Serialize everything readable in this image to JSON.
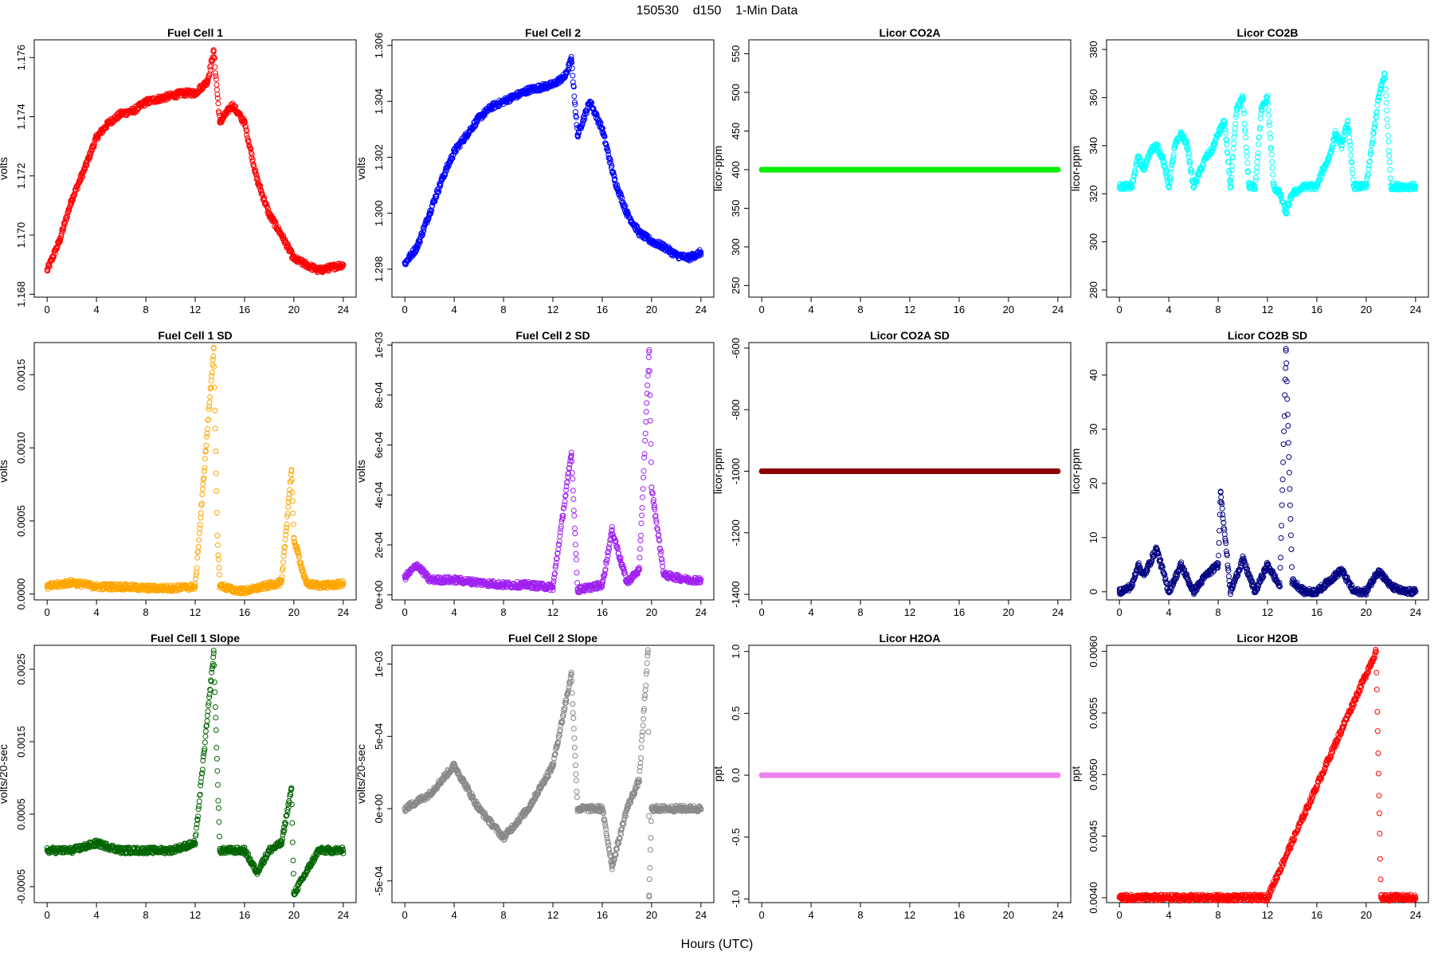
{
  "figure": {
    "title": "150530    d150    1-Min Data",
    "xlabel": "Hours (UTC)"
  },
  "chart_data": [
    {
      "type": "scatter",
      "title": "Fuel Cell 1",
      "ylabel": "volts",
      "color": "#ff0000",
      "xlim": [
        0,
        24
      ],
      "ylim": [
        1.1679,
        1.1766
      ],
      "xticks": [
        "0",
        "4",
        "8",
        "12",
        "16",
        "20",
        "24"
      ],
      "yticks": [
        "1.168",
        "1.170",
        "1.172",
        "1.174",
        "1.176"
      ],
      "x": [
        0,
        1,
        2,
        3,
        4,
        5,
        6,
        7,
        8,
        9,
        10,
        11,
        12,
        13,
        13.5,
        14,
        15,
        16,
        17,
        18,
        19,
        20,
        21,
        22,
        23,
        24
      ],
      "y": [
        1.1688,
        1.1698,
        1.1712,
        1.1722,
        1.1733,
        1.1738,
        1.1741,
        1.1742,
        1.1745,
        1.1746,
        1.1747,
        1.1748,
        1.1748,
        1.1752,
        1.1762,
        1.1738,
        1.1744,
        1.1738,
        1.1719,
        1.1707,
        1.17,
        1.1692,
        1.169,
        1.1688,
        1.1689,
        1.169
      ]
    },
    {
      "type": "scatter",
      "title": "Fuel Cell 2",
      "ylabel": "volts",
      "color": "#0000ff",
      "xlim": [
        0,
        24
      ],
      "ylim": [
        1.297,
        1.3062
      ],
      "xticks": [
        "0",
        "4",
        "8",
        "12",
        "16",
        "20",
        "24"
      ],
      "yticks": [
        "1.298",
        "1.300",
        "1.302",
        "1.304",
        "1.306"
      ],
      "x": [
        0,
        1,
        2,
        3,
        4,
        5,
        6,
        7,
        8,
        9,
        10,
        11,
        12,
        13,
        13.5,
        14,
        15,
        16,
        17,
        18,
        19,
        20,
        21,
        22,
        23,
        24
      ],
      "y": [
        1.2982,
        1.2988,
        1.3,
        1.3012,
        1.3022,
        1.3028,
        1.3034,
        1.3038,
        1.304,
        1.3042,
        1.3044,
        1.3045,
        1.3046,
        1.3049,
        1.3055,
        1.3028,
        1.304,
        1.303,
        1.3012,
        1.3,
        1.2993,
        1.299,
        1.2988,
        1.2985,
        1.2984,
        1.2986
      ]
    },
    {
      "type": "scatter",
      "title": "Licor CO2A",
      "ylabel": "licor-ppm",
      "color": "#00ee00",
      "xlim": [
        0,
        24
      ],
      "ylim": [
        235,
        568
      ],
      "xticks": [
        "0",
        "4",
        "8",
        "12",
        "16",
        "20",
        "24"
      ],
      "yticks": [
        "250",
        "300",
        "350",
        "400",
        "450",
        "500",
        "550"
      ],
      "x": [
        0,
        24
      ],
      "y": [
        400,
        400
      ]
    },
    {
      "type": "scatter",
      "title": "Licor CO2B",
      "ylabel": "licor-ppm",
      "color": "#00ffff",
      "xlim": [
        0,
        24
      ],
      "ylim": [
        277,
        384
      ],
      "xticks": [
        "0",
        "4",
        "8",
        "12",
        "16",
        "20",
        "24"
      ],
      "yticks": [
        "280",
        "300",
        "320",
        "340",
        "360",
        "380"
      ],
      "x": [
        0,
        1,
        1.5,
        2,
        2.5,
        3,
        3.5,
        4,
        4.5,
        5,
        5.5,
        6,
        7,
        7.5,
        8,
        8.5,
        9,
        9.5,
        10,
        10.5,
        11,
        11.5,
        12,
        12.5,
        13,
        13.5,
        14,
        15,
        16,
        16.5,
        17,
        17.5,
        18,
        18.5,
        19,
        20,
        21,
        21.5,
        22,
        23,
        24
      ],
      "y": [
        323,
        323,
        335,
        330,
        338,
        340,
        335,
        323,
        340,
        345,
        340,
        323,
        335,
        338,
        345,
        350,
        323,
        355,
        360,
        323,
        323,
        355,
        360,
        323,
        320,
        312,
        320,
        323,
        323,
        330,
        335,
        345,
        340,
        350,
        323,
        323,
        360,
        370,
        323,
        323,
        323
      ]
    },
    {
      "type": "scatter",
      "title": "Fuel Cell 1 SD",
      "ylabel": "volts",
      "color": "#ffa500",
      "xlim": [
        0,
        24
      ],
      "ylim": [
        -4e-05,
        0.00172
      ],
      "xticks": [
        "0",
        "4",
        "8",
        "12",
        "16",
        "20",
        "24"
      ],
      "yticks": [
        "0.0000",
        "0.0005",
        "0.0010",
        "0.0015"
      ],
      "x": [
        0,
        2,
        4,
        6,
        8,
        10,
        12,
        13.5,
        13.8,
        14,
        15,
        16,
        17,
        18,
        19,
        19.8,
        20,
        21,
        22,
        23,
        24
      ],
      "y": [
        5e-05,
        8e-05,
        5e-05,
        5e-05,
        4e-05,
        4e-05,
        5e-05,
        0.00168,
        0.0004,
        6e-05,
        3e-05,
        2e-05,
        4e-05,
        6e-05,
        8e-05,
        0.00085,
        0.00038,
        7e-05,
        6e-05,
        6e-05,
        7e-05
      ]
    },
    {
      "type": "scatter",
      "title": "Fuel Cell 2 SD",
      "ylabel": "volts",
      "color": "#a020f0",
      "xlim": [
        0,
        24
      ],
      "ylim": [
        -2e-05,
        0.00101
      ],
      "xticks": [
        "0",
        "4",
        "8",
        "12",
        "16",
        "20",
        "24"
      ],
      "yticks": [
        "0e+00",
        "2e-04",
        "4e-04",
        "6e-04",
        "8e-04",
        "1e-03"
      ],
      "x": [
        0,
        1,
        2,
        4,
        6,
        8,
        10,
        12,
        13.5,
        14,
        15,
        16,
        16.8,
        18,
        19,
        19.8,
        20,
        21,
        22,
        23,
        24
      ],
      "y": [
        7e-05,
        0.00012,
        6e-05,
        6e-05,
        5e-05,
        4e-05,
        4e-05,
        3e-05,
        0.00057,
        2e-05,
        3e-05,
        4e-05,
        0.00026,
        5e-05,
        0.0001,
        0.00098,
        0.00043,
        8e-05,
        7e-05,
        6e-05,
        6e-05
      ]
    },
    {
      "type": "scatter",
      "title": "Licor CO2A SD",
      "ylabel": "licor-ppm",
      "color": "#8b0000",
      "xlim": [
        0,
        24
      ],
      "ylim": [
        -1418,
        -582
      ],
      "xticks": [
        "0",
        "4",
        "8",
        "12",
        "16",
        "20",
        "24"
      ],
      "yticks": [
        "-1400",
        "-1200",
        "-1000",
        "-800",
        "-600"
      ],
      "x": [
        0,
        24
      ],
      "y": [
        -1000,
        -1000
      ]
    },
    {
      "type": "scatter",
      "title": "Licor CO2B SD",
      "ylabel": "licor-ppm",
      "color": "#000080",
      "xlim": [
        0,
        24
      ],
      "ylim": [
        -1.5,
        46
      ],
      "xticks": [
        "0",
        "4",
        "8",
        "12",
        "16",
        "20",
        "24"
      ],
      "yticks": [
        "0",
        "10",
        "20",
        "30",
        "40"
      ],
      "x": [
        0,
        1,
        1.5,
        2,
        3,
        4,
        5,
        6,
        7,
        8,
        8.2,
        9,
        10,
        11,
        12,
        13,
        13.5,
        14,
        15,
        16,
        17,
        18,
        19,
        20,
        21,
        22,
        23,
        24
      ],
      "y": [
        0,
        1,
        5,
        3,
        8,
        0,
        5,
        0,
        3,
        5,
        18.5,
        0,
        6,
        0,
        5,
        1,
        44.5,
        2,
        0,
        0,
        2,
        4,
        0,
        0,
        4,
        1,
        0,
        0
      ]
    },
    {
      "type": "scatter",
      "title": "Fuel Cell 1 Slope",
      "ylabel": "volts/20-sec",
      "color": "#006400",
      "xlim": [
        0,
        24
      ],
      "ylim": [
        -0.00072,
        0.00283
      ],
      "xticks": [
        "0",
        "4",
        "8",
        "12",
        "16",
        "20",
        "24"
      ],
      "yticks": [
        "-0.0005",
        "0.0005",
        "0.0015",
        "0.0025"
      ],
      "x": [
        0,
        2,
        4,
        6,
        8,
        10,
        12,
        13.5,
        14,
        16,
        17,
        18,
        19,
        19.8,
        20,
        22,
        24
      ],
      "y": [
        0.0,
        0.0,
        0.0001,
        0.0,
        0.0,
        0.0,
        0.0001,
        0.00272,
        0.0,
        0.0,
        -0.0003,
        0.0,
        0.0001,
        0.00085,
        -0.0006,
        0.0,
        0.0
      ]
    },
    {
      "type": "scatter",
      "title": "Fuel Cell 2 Slope",
      "ylabel": "volts/20-sec",
      "color": "#888888",
      "xlim": [
        0,
        24
      ],
      "ylim": [
        -0.00065,
        0.00113
      ],
      "xticks": [
        "0",
        "4",
        "8",
        "12",
        "16",
        "20",
        "24"
      ],
      "yticks": [
        "-5e-04",
        "0e+00",
        "5e-04",
        "1e-03"
      ],
      "x": [
        0,
        2,
        4,
        6,
        8,
        10,
        12,
        13.5,
        14,
        16,
        16.8,
        18,
        19,
        19.7,
        19.8,
        20,
        22,
        24
      ],
      "y": [
        0.0,
        0.0001,
        0.0003,
        0.0,
        -0.0002,
        0.0,
        0.0003,
        0.00093,
        0.0,
        0.0,
        -0.0004,
        0.0,
        0.0002,
        0.00108,
        -0.0006,
        0.0,
        0.0,
        0.0
      ]
    },
    {
      "type": "scatter",
      "title": "Licor H2OA",
      "ylabel": "ppt",
      "color": "#ee82ee",
      "xlim": [
        0,
        24
      ],
      "ylim": [
        -1.03,
        1.05
      ],
      "xticks": [
        "0",
        "4",
        "8",
        "12",
        "16",
        "20",
        "24"
      ],
      "yticks": [
        "-1.0",
        "-0.5",
        "0.0",
        "0.5",
        "1.0"
      ],
      "x": [
        0,
        24
      ],
      "y": [
        0,
        0
      ]
    },
    {
      "type": "scatter",
      "title": "Licor H2OB",
      "ylabel": "ppt",
      "color": "#ff0000",
      "xlim": [
        0,
        24
      ],
      "ylim": [
        0.00396,
        0.00605
      ],
      "xticks": [
        "0",
        "4",
        "8",
        "12",
        "16",
        "20",
        "24"
      ],
      "yticks": [
        "0.0040",
        "0.0045",
        "0.0050",
        "0.0055",
        "0.0060"
      ],
      "x": [
        0,
        0.5,
        1,
        1.5,
        2,
        2.5,
        3,
        3.5,
        9,
        11.5,
        12,
        20.8,
        21.2,
        21.5,
        23.8,
        24
      ],
      "y": [
        0.004,
        0.004,
        0.004,
        0.004,
        0.004,
        0.004,
        0.004,
        0.004,
        0.004,
        0.004,
        0.004,
        0.006,
        0.004,
        0.004,
        0.004,
        0.004
      ]
    }
  ]
}
